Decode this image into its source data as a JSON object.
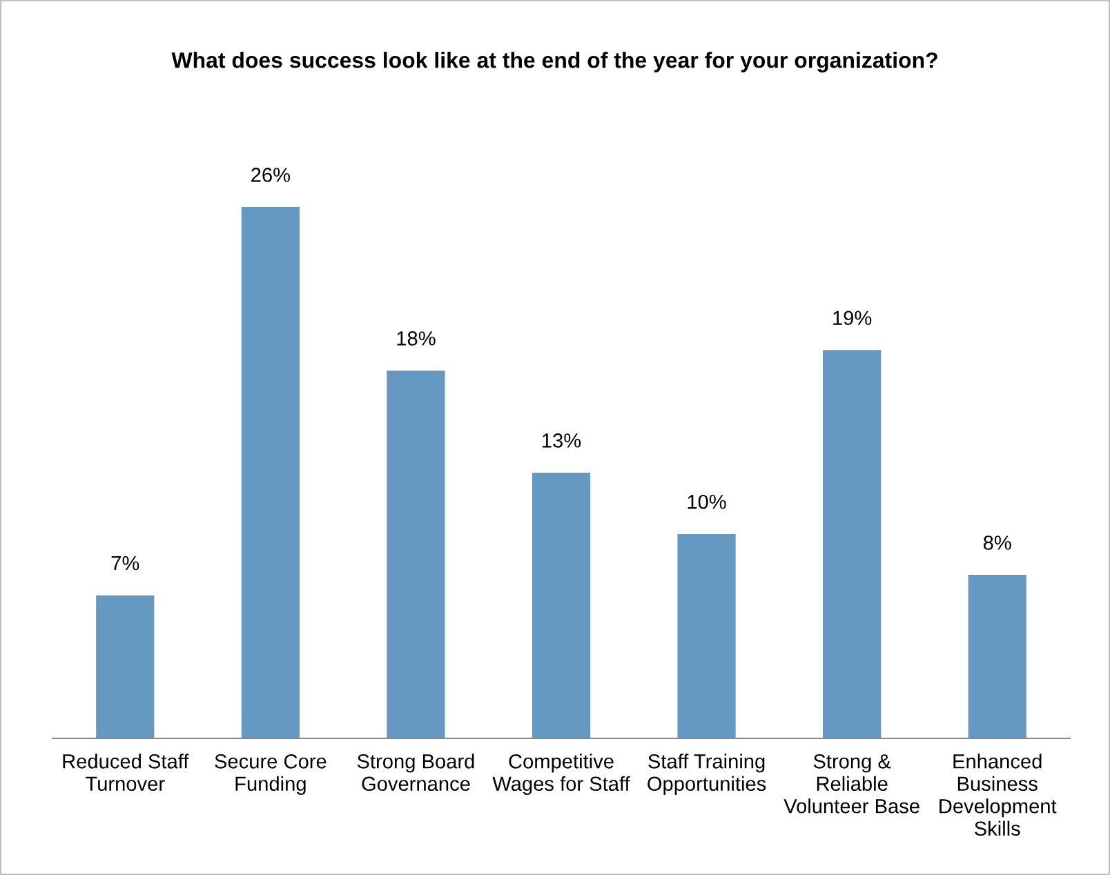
{
  "chart_data": {
    "type": "bar",
    "title": "What does success look like at the end of the year for your organization?",
    "categories": [
      "Reduced Staff\nTurnover",
      "Secure Core\nFunding",
      "Strong Board\nGovernance",
      "Competitive\nWages for Staff",
      "Staff Training\nOpportunities",
      "Strong &\nReliable\nVolunteer Base",
      "Enhanced\nBusiness\nDevelopment\nSkills"
    ],
    "values": [
      7,
      26,
      18,
      13,
      10,
      19,
      8
    ],
    "value_labels": [
      "7%",
      "26%",
      "18%",
      "13%",
      "10%",
      "19%",
      "8%"
    ],
    "color": "#6699c2",
    "grid": false,
    "legend": false
  }
}
